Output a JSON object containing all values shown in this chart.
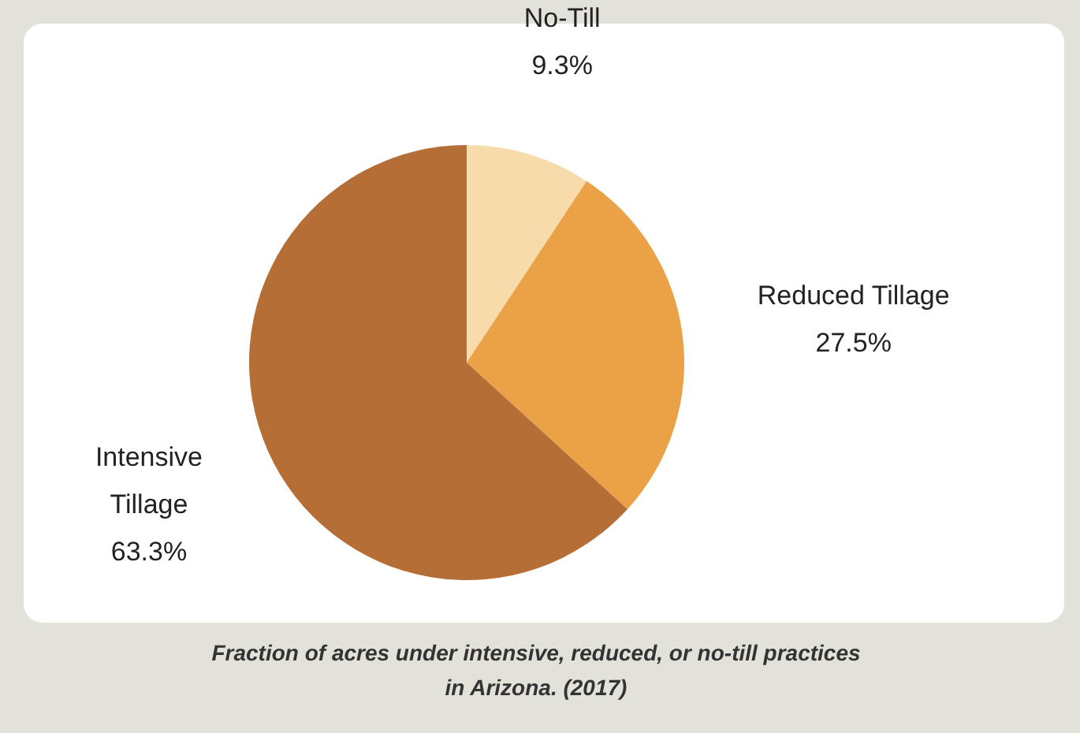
{
  "chart_data": {
    "type": "pie",
    "categories": [
      "No-Till",
      "Reduced Tillage",
      "Intensive Tillage"
    ],
    "values": [
      9.3,
      27.5,
      63.3
    ],
    "value_labels": [
      "9.3%",
      "27.5%",
      "63.3%"
    ],
    "colors": [
      "#f7dbaa",
      "#eba246",
      "#b56e36"
    ],
    "annotations": [
      "Fraction of acres under intensive, reduced, or no-till practices in Arizona. (2017)"
    ]
  }
}
